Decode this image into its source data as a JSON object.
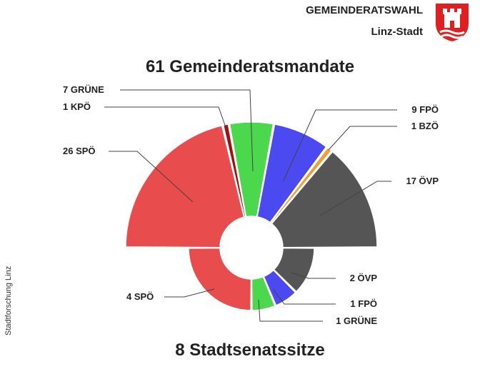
{
  "header": {
    "title": "GEMEINDERATSWAHL",
    "subtitle": "Linz-Stadt",
    "logo_icon": "linz-coat-of-arms-icon"
  },
  "credit": "Stadtforschung Linz",
  "colors": {
    "SPÖ": "#e84c4c",
    "KPÖ": "#a01010",
    "GRÜNE": "#4cd84c",
    "FPÖ": "#4a4af0",
    "BZÖ": "#f0a030",
    "ÖVP": "#555555",
    "logo_red": "#e02020"
  },
  "chart_data": [
    {
      "type": "pie",
      "variant": "half-donut",
      "title": "61 Gemeinderatsmandate",
      "slices": [
        {
          "name": "SPÖ",
          "value": 26,
          "label": "26  SPÖ"
        },
        {
          "name": "KPÖ",
          "value": 1,
          "label": "1  KPÖ"
        },
        {
          "name": "GRÜNE",
          "value": 7,
          "label": "7  GRÜNE"
        },
        {
          "name": "FPÖ",
          "value": 9,
          "label": "9  FPÖ"
        },
        {
          "name": "BZÖ",
          "value": 1,
          "label": "1  BZÖ"
        },
        {
          "name": "ÖVP",
          "value": 17,
          "label": "17  ÖVP"
        }
      ]
    },
    {
      "type": "pie",
      "variant": "half-donut",
      "title": "8 Stadtsenatssitze",
      "slices": [
        {
          "name": "SPÖ",
          "value": 4,
          "label": "4  SPÖ"
        },
        {
          "name": "GRÜNE",
          "value": 1,
          "label": "1  GRÜNE"
        },
        {
          "name": "FPÖ",
          "value": 1,
          "label": "1  FPÖ"
        },
        {
          "name": "ÖVP",
          "value": 2,
          "label": "2  ÖVP"
        }
      ]
    }
  ]
}
